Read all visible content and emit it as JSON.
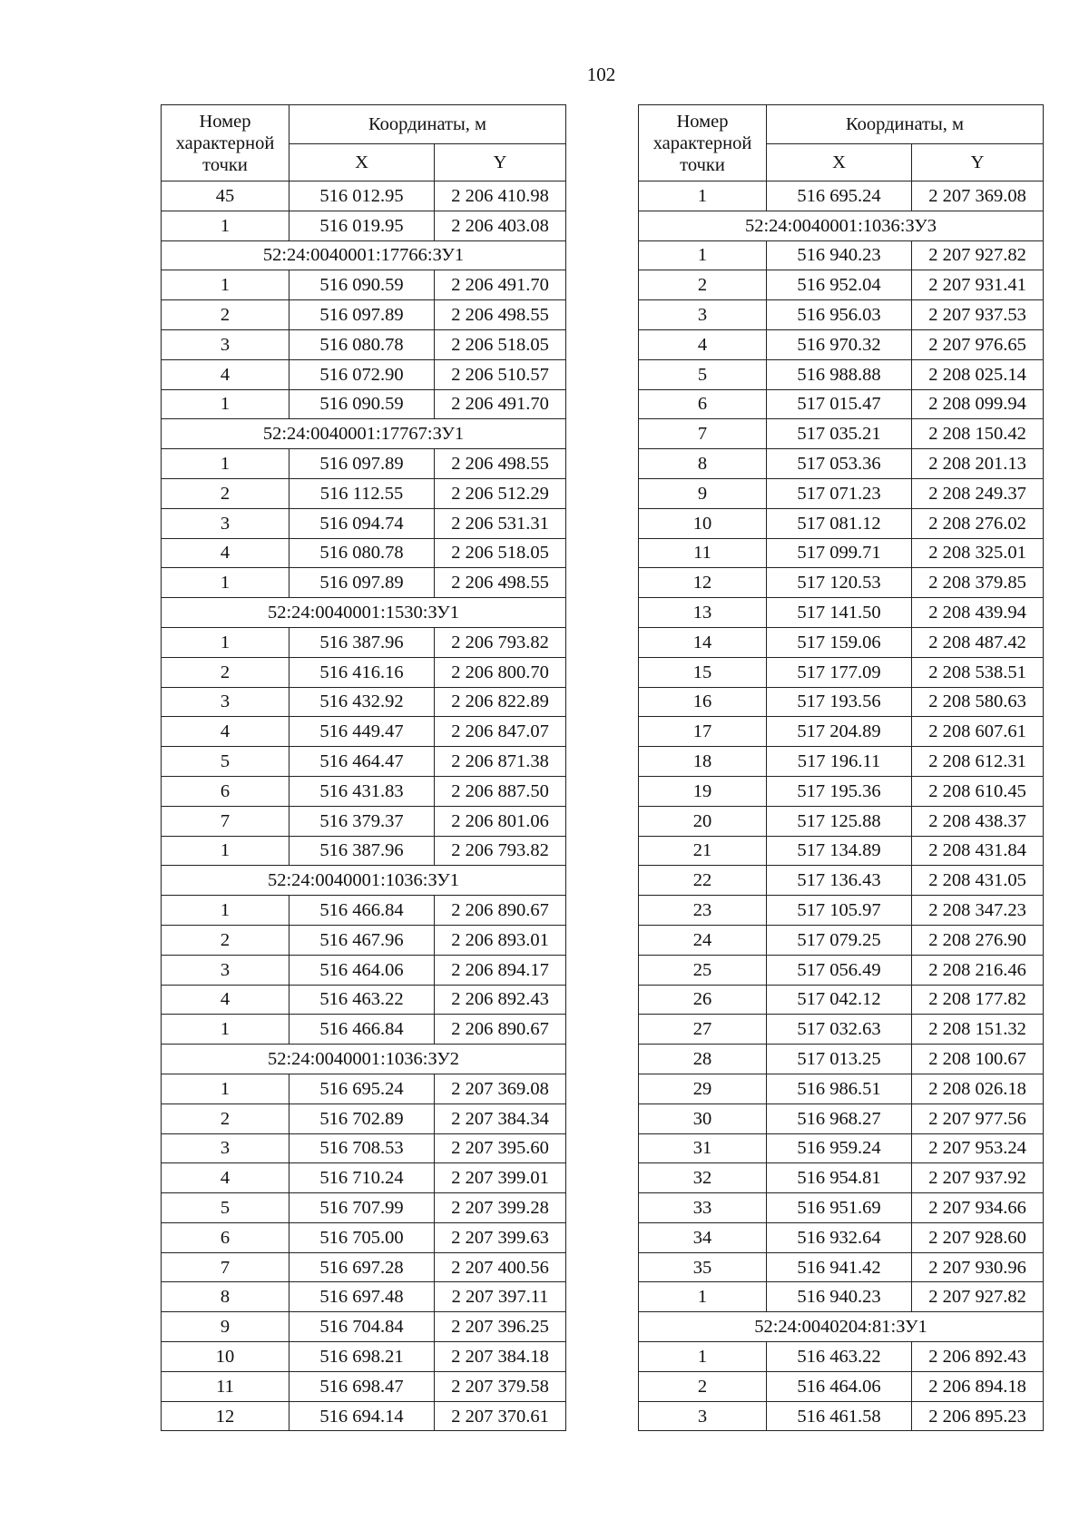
{
  "page_number": "102",
  "header": {
    "point_number": "Номер характерной точки",
    "coordinates": "Координаты, м",
    "x": "X",
    "y": "Y"
  },
  "left_table": [
    {
      "n": "45",
      "x": "516 012.95",
      "y": "2 206 410.98"
    },
    {
      "n": "1",
      "x": "516 019.95",
      "y": "2 206 403.08"
    },
    {
      "section": "52:24:0040001:17766:ЗУ1"
    },
    {
      "n": "1",
      "x": "516 090.59",
      "y": "2 206 491.70"
    },
    {
      "n": "2",
      "x": "516 097.89",
      "y": "2 206 498.55"
    },
    {
      "n": "3",
      "x": "516 080.78",
      "y": "2 206 518.05"
    },
    {
      "n": "4",
      "x": "516 072.90",
      "y": "2 206 510.57"
    },
    {
      "n": "1",
      "x": "516 090.59",
      "y": "2 206 491.70"
    },
    {
      "section": "52:24:0040001:17767:ЗУ1"
    },
    {
      "n": "1",
      "x": "516 097.89",
      "y": "2 206 498.55"
    },
    {
      "n": "2",
      "x": "516 112.55",
      "y": "2 206 512.29"
    },
    {
      "n": "3",
      "x": "516 094.74",
      "y": "2 206 531.31"
    },
    {
      "n": "4",
      "x": "516 080.78",
      "y": "2 206 518.05"
    },
    {
      "n": "1",
      "x": "516 097.89",
      "y": "2 206 498.55"
    },
    {
      "section": "52:24:0040001:1530:ЗУ1"
    },
    {
      "n": "1",
      "x": "516 387.96",
      "y": "2 206 793.82"
    },
    {
      "n": "2",
      "x": "516 416.16",
      "y": "2 206 800.70"
    },
    {
      "n": "3",
      "x": "516 432.92",
      "y": "2 206 822.89"
    },
    {
      "n": "4",
      "x": "516 449.47",
      "y": "2 206 847.07"
    },
    {
      "n": "5",
      "x": "516 464.47",
      "y": "2 206 871.38"
    },
    {
      "n": "6",
      "x": "516 431.83",
      "y": "2 206 887.50"
    },
    {
      "n": "7",
      "x": "516 379.37",
      "y": "2 206 801.06"
    },
    {
      "n": "1",
      "x": "516 387.96",
      "y": "2 206 793.82"
    },
    {
      "section": "52:24:0040001:1036:ЗУ1"
    },
    {
      "n": "1",
      "x": "516 466.84",
      "y": "2 206 890.67"
    },
    {
      "n": "2",
      "x": "516 467.96",
      "y": "2 206 893.01"
    },
    {
      "n": "3",
      "x": "516 464.06",
      "y": "2 206 894.17"
    },
    {
      "n": "4",
      "x": "516 463.22",
      "y": "2 206 892.43"
    },
    {
      "n": "1",
      "x": "516 466.84",
      "y": "2 206 890.67"
    },
    {
      "section": "52:24:0040001:1036:ЗУ2"
    },
    {
      "n": "1",
      "x": "516 695.24",
      "y": "2 207 369.08"
    },
    {
      "n": "2",
      "x": "516 702.89",
      "y": "2 207 384.34"
    },
    {
      "n": "3",
      "x": "516 708.53",
      "y": "2 207 395.60"
    },
    {
      "n": "4",
      "x": "516 710.24",
      "y": "2 207 399.01"
    },
    {
      "n": "5",
      "x": "516 707.99",
      "y": "2 207 399.28"
    },
    {
      "n": "6",
      "x": "516 705.00",
      "y": "2 207 399.63"
    },
    {
      "n": "7",
      "x": "516 697.28",
      "y": "2 207 400.56"
    },
    {
      "n": "8",
      "x": "516 697.48",
      "y": "2 207 397.11"
    },
    {
      "n": "9",
      "x": "516 704.84",
      "y": "2 207 396.25"
    },
    {
      "n": "10",
      "x": "516 698.21",
      "y": "2 207 384.18"
    },
    {
      "n": "11",
      "x": "516 698.47",
      "y": "2 207 379.58"
    },
    {
      "n": "12",
      "x": "516 694.14",
      "y": "2 207 370.61"
    }
  ],
  "right_table": [
    {
      "n": "1",
      "x": "516 695.24",
      "y": "2 207 369.08"
    },
    {
      "section": "52:24:0040001:1036:ЗУ3"
    },
    {
      "n": "1",
      "x": "516 940.23",
      "y": "2 207 927.82"
    },
    {
      "n": "2",
      "x": "516 952.04",
      "y": "2 207 931.41"
    },
    {
      "n": "3",
      "x": "516 956.03",
      "y": "2 207 937.53"
    },
    {
      "n": "4",
      "x": "516 970.32",
      "y": "2 207 976.65"
    },
    {
      "n": "5",
      "x": "516 988.88",
      "y": "2 208 025.14"
    },
    {
      "n": "6",
      "x": "517 015.47",
      "y": "2 208 099.94"
    },
    {
      "n": "7",
      "x": "517 035.21",
      "y": "2 208 150.42"
    },
    {
      "n": "8",
      "x": "517 053.36",
      "y": "2 208 201.13"
    },
    {
      "n": "9",
      "x": "517 071.23",
      "y": "2 208 249.37"
    },
    {
      "n": "10",
      "x": "517 081.12",
      "y": "2 208 276.02"
    },
    {
      "n": "11",
      "x": "517 099.71",
      "y": "2 208 325.01"
    },
    {
      "n": "12",
      "x": "517 120.53",
      "y": "2 208 379.85"
    },
    {
      "n": "13",
      "x": "517 141.50",
      "y": "2 208 439.94"
    },
    {
      "n": "14",
      "x": "517 159.06",
      "y": "2 208 487.42"
    },
    {
      "n": "15",
      "x": "517 177.09",
      "y": "2 208 538.51"
    },
    {
      "n": "16",
      "x": "517 193.56",
      "y": "2 208 580.63"
    },
    {
      "n": "17",
      "x": "517 204.89",
      "y": "2 208 607.61"
    },
    {
      "n": "18",
      "x": "517 196.11",
      "y": "2 208 612.31"
    },
    {
      "n": "19",
      "x": "517 195.36",
      "y": "2 208 610.45"
    },
    {
      "n": "20",
      "x": "517 125.88",
      "y": "2 208 438.37"
    },
    {
      "n": "21",
      "x": "517 134.89",
      "y": "2 208 431.84"
    },
    {
      "n": "22",
      "x": "517 136.43",
      "y": "2 208 431.05"
    },
    {
      "n": "23",
      "x": "517 105.97",
      "y": "2 208 347.23"
    },
    {
      "n": "24",
      "x": "517 079.25",
      "y": "2 208 276.90"
    },
    {
      "n": "25",
      "x": "517 056.49",
      "y": "2 208 216.46"
    },
    {
      "n": "26",
      "x": "517 042.12",
      "y": "2 208 177.82"
    },
    {
      "n": "27",
      "x": "517 032.63",
      "y": "2 208 151.32"
    },
    {
      "n": "28",
      "x": "517 013.25",
      "y": "2 208 100.67"
    },
    {
      "n": "29",
      "x": "516 986.51",
      "y": "2 208 026.18"
    },
    {
      "n": "30",
      "x": "516 968.27",
      "y": "2 207 977.56"
    },
    {
      "n": "31",
      "x": "516 959.24",
      "y": "2 207 953.24"
    },
    {
      "n": "32",
      "x": "516 954.81",
      "y": "2 207 937.92"
    },
    {
      "n": "33",
      "x": "516 951.69",
      "y": "2 207 934.66"
    },
    {
      "n": "34",
      "x": "516 932.64",
      "y": "2 207 928.60"
    },
    {
      "n": "35",
      "x": "516 941.42",
      "y": "2 207 930.96"
    },
    {
      "n": "1",
      "x": "516 940.23",
      "y": "2 207 927.82"
    },
    {
      "section": "52:24:0040204:81:ЗУ1"
    },
    {
      "n": "1",
      "x": "516 463.22",
      "y": "2 206 892.43"
    },
    {
      "n": "2",
      "x": "516 464.06",
      "y": "2 206 894.18"
    },
    {
      "n": "3",
      "x": "516 461.58",
      "y": "2 206 895.23"
    }
  ]
}
